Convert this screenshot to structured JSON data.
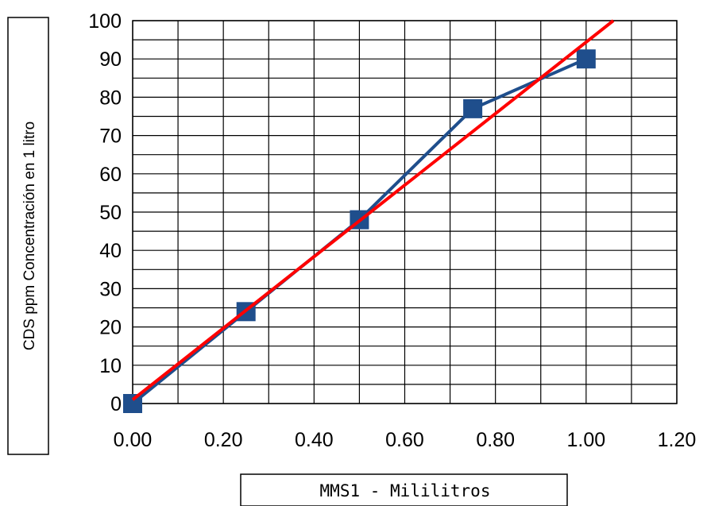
{
  "chart_data": {
    "type": "line",
    "title": "",
    "xlabel": "MMS1 - Mililitros",
    "ylabel": "CDS ppm Concentración en 1 litro",
    "xlim": [
      0,
      1.2
    ],
    "ylim": [
      0,
      100
    ],
    "x_ticks": [
      "0.00",
      "0.20",
      "0.40",
      "0.60",
      "0.80",
      "1.00",
      "1.20"
    ],
    "y_ticks": [
      "0",
      "10",
      "20",
      "30",
      "40",
      "50",
      "60",
      "70",
      "80",
      "90",
      "100"
    ],
    "grid": true,
    "legend": "none",
    "series": [
      {
        "marker": "square",
        "color": "#1f4e8c",
        "x": [
          0.0,
          0.25,
          0.5,
          0.75,
          1.0
        ],
        "y": [
          0,
          24,
          48,
          77,
          90
        ]
      }
    ],
    "trendline": {
      "color": "#ff0000",
      "x": [
        0.0,
        1.06
      ],
      "y": [
        1,
        100
      ]
    }
  }
}
